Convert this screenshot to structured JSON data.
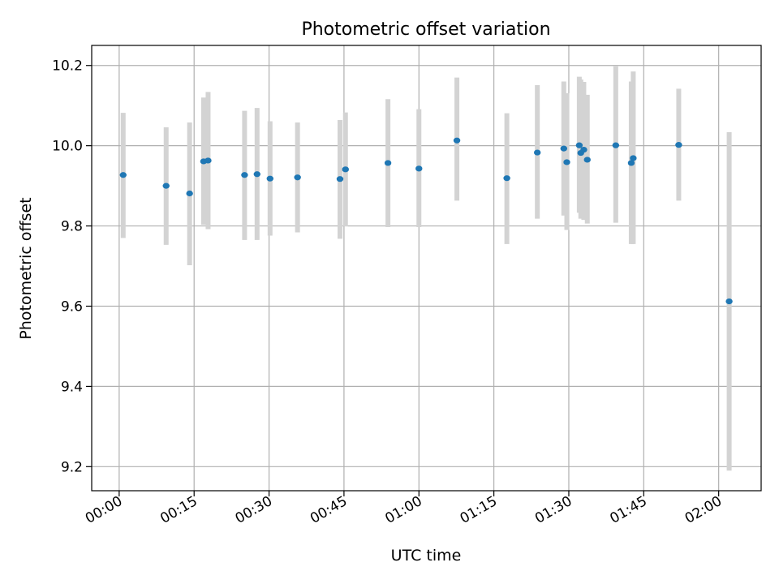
{
  "chart_data": {
    "type": "scatter",
    "title": "Photometric offset variation",
    "xlabel": "UTC time",
    "ylabel": "Photometric offset",
    "x_unit": "minutes after 00:00 UTC",
    "xlim": [
      -5.5,
      128.5
    ],
    "ylim": [
      9.14,
      10.25
    ],
    "grid": true,
    "x_ticks": [
      {
        "value": 0,
        "label": "00:00"
      },
      {
        "value": 15,
        "label": "00:15"
      },
      {
        "value": 30,
        "label": "00:30"
      },
      {
        "value": 45,
        "label": "00:45"
      },
      {
        "value": 60,
        "label": "01:00"
      },
      {
        "value": 75,
        "label": "01:15"
      },
      {
        "value": 90,
        "label": "01:30"
      },
      {
        "value": 105,
        "label": "01:45"
      },
      {
        "value": 120,
        "label": "02:00"
      }
    ],
    "y_ticks": [
      {
        "value": 9.2,
        "label": "9.2"
      },
      {
        "value": 9.4,
        "label": "9.4"
      },
      {
        "value": 9.6,
        "label": "9.6"
      },
      {
        "value": 9.8,
        "label": "9.8"
      },
      {
        "value": 10.0,
        "label": "10.0"
      },
      {
        "value": 10.2,
        "label": "10.2"
      }
    ],
    "point_color": "#1f77b4",
    "errorbar_color": "#d3d3d3",
    "points": [
      {
        "x": 0.8,
        "y": 9.927,
        "ylow": 9.77,
        "yhigh": 10.082
      },
      {
        "x": 9.4,
        "y": 9.9,
        "ylow": 9.753,
        "yhigh": 10.046
      },
      {
        "x": 14.1,
        "y": 9.881,
        "ylow": 9.702,
        "yhigh": 10.058
      },
      {
        "x": 16.9,
        "y": 9.961,
        "ylow": 9.803,
        "yhigh": 10.12
      },
      {
        "x": 17.8,
        "y": 9.963,
        "ylow": 9.792,
        "yhigh": 10.134
      },
      {
        "x": 25.1,
        "y": 9.927,
        "ylow": 9.765,
        "yhigh": 10.087
      },
      {
        "x": 27.6,
        "y": 9.929,
        "ylow": 9.765,
        "yhigh": 10.094
      },
      {
        "x": 30.2,
        "y": 9.918,
        "ylow": 9.776,
        "yhigh": 10.061
      },
      {
        "x": 35.7,
        "y": 9.921,
        "ylow": 9.784,
        "yhigh": 10.058
      },
      {
        "x": 44.2,
        "y": 9.917,
        "ylow": 9.768,
        "yhigh": 10.064
      },
      {
        "x": 45.3,
        "y": 9.941,
        "ylow": 9.799,
        "yhigh": 10.083
      },
      {
        "x": 53.8,
        "y": 9.957,
        "ylow": 9.797,
        "yhigh": 10.116
      },
      {
        "x": 60.0,
        "y": 9.943,
        "ylow": 9.797,
        "yhigh": 10.091
      },
      {
        "x": 67.6,
        "y": 10.013,
        "ylow": 9.863,
        "yhigh": 10.17
      },
      {
        "x": 77.6,
        "y": 9.919,
        "ylow": 9.755,
        "yhigh": 10.081
      },
      {
        "x": 83.7,
        "y": 9.983,
        "ylow": 9.818,
        "yhigh": 10.151
      },
      {
        "x": 89.0,
        "y": 9.993,
        "ylow": 9.826,
        "yhigh": 10.16
      },
      {
        "x": 89.6,
        "y": 9.959,
        "ylow": 9.79,
        "yhigh": 10.131
      },
      {
        "x": 92.1,
        "y": 10.001,
        "ylow": 9.833,
        "yhigh": 10.172
      },
      {
        "x": 92.4,
        "y": 9.982,
        "ylow": 9.818,
        "yhigh": 10.165
      },
      {
        "x": 93.0,
        "y": 9.99,
        "ylow": 9.815,
        "yhigh": 10.159
      },
      {
        "x": 93.7,
        "y": 9.965,
        "ylow": 9.806,
        "yhigh": 10.127
      },
      {
        "x": 99.4,
        "y": 10.001,
        "ylow": 9.808,
        "yhigh": 10.198
      },
      {
        "x": 102.5,
        "y": 9.957,
        "ylow": 9.755,
        "yhigh": 10.16
      },
      {
        "x": 102.9,
        "y": 9.969,
        "ylow": 9.755,
        "yhigh": 10.185
      },
      {
        "x": 112.0,
        "y": 10.002,
        "ylow": 9.863,
        "yhigh": 10.142
      },
      {
        "x": 122.1,
        "y": 9.612,
        "ylow": 9.19,
        "yhigh": 10.034
      }
    ]
  }
}
